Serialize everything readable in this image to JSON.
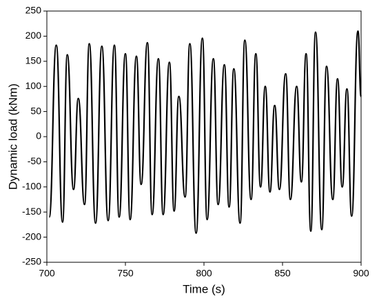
{
  "chart_data": {
    "type": "line",
    "x_label": "Time (s)",
    "y_label": "Dynamic load (kNm)",
    "xlim": [
      700,
      900
    ],
    "xticks": [
      700,
      750,
      800,
      850,
      900
    ],
    "ylim": [
      -250,
      250
    ],
    "yticks": [
      -250,
      -200,
      -150,
      -100,
      -50,
      0,
      50,
      100,
      150,
      200,
      250
    ],
    "series": [
      {
        "color": "#000000",
        "x": [
          701.5,
          706,
          710,
          713,
          717,
          720,
          724,
          727,
          731,
          735,
          739,
          743,
          746,
          750,
          753,
          757,
          760,
          764,
          767,
          771,
          774,
          778,
          781,
          784,
          788,
          791,
          795,
          799,
          802,
          806,
          809,
          813,
          816,
          819,
          823,
          826,
          830,
          833,
          836,
          839,
          842,
          845,
          848,
          852,
          855,
          859,
          862,
          865,
          868,
          871,
          875,
          878,
          882,
          885,
          888,
          891,
          894,
          898,
          900
        ],
        "values": [
          -160,
          182,
          -170,
          163,
          -105,
          76,
          -135,
          185,
          -172,
          180,
          -167,
          182,
          -160,
          165,
          -165,
          160,
          -95,
          187,
          -155,
          155,
          -155,
          148,
          -148,
          80,
          -120,
          185,
          -192,
          196,
          -165,
          155,
          -135,
          143,
          -140,
          135,
          -172,
          192,
          -125,
          165,
          -100,
          100,
          -110,
          62,
          -105,
          125,
          -125,
          100,
          -90,
          165,
          -188,
          208,
          -185,
          140,
          -125,
          115,
          -100,
          95,
          -158,
          210,
          80
        ]
      }
    ]
  }
}
